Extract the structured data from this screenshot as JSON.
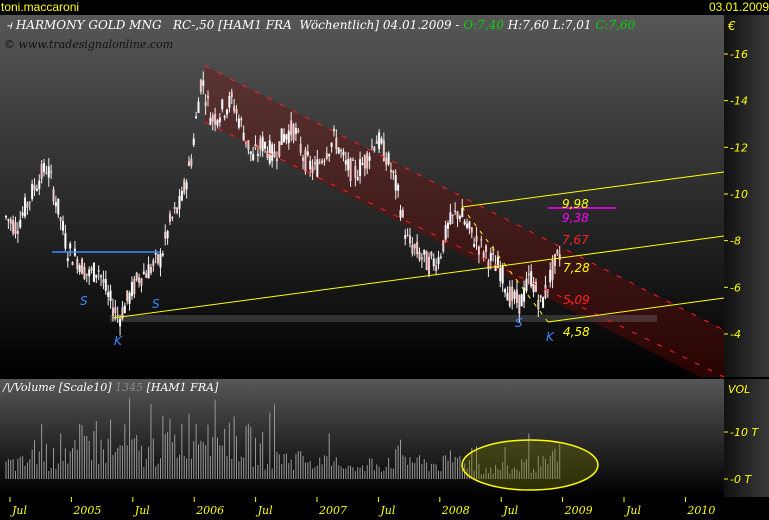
{
  "header": {
    "user": "toni.maccaroni",
    "date": "03.01.2009"
  },
  "title": {
    "icon": "candlestick-icon",
    "name": "HARMONY GOLD MNG",
    "symbol": "RC-,50 [HAM1 FRA",
    "period": "Wöchentlich]",
    "date": "04.01.2009 -",
    "open": "O:7,40",
    "high": "H:7,60",
    "low": "L:7,01",
    "close": "C:7,60"
  },
  "copyright": "© www.tradesignalonline.com",
  "volume_title": {
    "icon": "line-icon",
    "label": "Volume [Scale10]",
    "value": "1345",
    "symbol": "[HAM1 FRA]"
  },
  "colors": {
    "up": "#ffffff",
    "channel": "#ff2020",
    "trend": "#ffff00",
    "support": "#3a8cff",
    "target": "#ff00ff",
    "axis": "#ffff00"
  },
  "chart_data": [
    {
      "type": "candlestick",
      "currency": "€",
      "yticks": [
        "16",
        "14",
        "12",
        "10",
        "8",
        "6",
        "4"
      ],
      "ylim": [
        3,
        17
      ],
      "x_start": "2004-06",
      "monthly_close_approx": [
        9.0,
        8.6,
        9.5,
        10.5,
        11.2,
        9.5,
        7.6,
        7.2,
        6.5,
        6.8,
        5.5,
        4.7,
        5.6,
        6.5,
        6.8,
        7.2,
        8.8,
        9.6,
        11.5,
        15.0,
        13.2,
        13.6,
        14.0,
        12.8,
        11.5,
        12.2,
        11.6,
        12.5,
        12.8,
        11.5,
        11.0,
        11.8,
        12.4,
        11.2,
        10.9,
        11.5,
        12.4,
        11.6,
        10.2,
        8.0,
        7.5,
        7.0,
        7.2,
        8.6,
        9.3,
        8.4,
        7.8,
        7.2,
        6.8,
        5.6,
        5.3,
        6.5,
        5.2,
        6.6,
        7.6
      ],
      "annotations": [
        {
          "text": "S",
          "color": "#3a8cff"
        },
        {
          "text": "S",
          "color": "#3a8cff"
        },
        {
          "text": "K",
          "color": "#3a8cff"
        },
        {
          "text": "S",
          "color": "#3a8cff"
        },
        {
          "text": "K",
          "color": "#3a8cff"
        },
        {
          "text": "9,98",
          "color": "#ffff00"
        },
        {
          "text": "9,38",
          "color": "#ff00ff"
        },
        {
          "text": "7,67",
          "color": "#ff2020"
        },
        {
          "text": "7,28",
          "color": "#ffff00"
        },
        {
          "text": "5,09",
          "color": "#ff2020"
        },
        {
          "text": "4,58",
          "color": "#ffff00"
        }
      ]
    },
    {
      "type": "bar",
      "ylabel": "VOL",
      "yticks": [
        "10 T",
        "0 T"
      ],
      "monthly_volume_T_approx": [
        3,
        3,
        4,
        5,
        4,
        6,
        5,
        7,
        8,
        6,
        5,
        7,
        6,
        5,
        6,
        8,
        7,
        9,
        10,
        12,
        10,
        9,
        8,
        7,
        6,
        5,
        5,
        4,
        4,
        4,
        3,
        3,
        3,
        3,
        2,
        3,
        3,
        4,
        5,
        4,
        3,
        3,
        3,
        4,
        4,
        3,
        2,
        2,
        2,
        2,
        3,
        3,
        3,
        4,
        4
      ]
    }
  ],
  "xaxis": {
    "labels": [
      "Jul",
      "2005",
      "Jul",
      "2006",
      "Jul",
      "2007",
      "Jul",
      "2008",
      "Jul",
      "2009",
      "Jul",
      "2010"
    ]
  }
}
